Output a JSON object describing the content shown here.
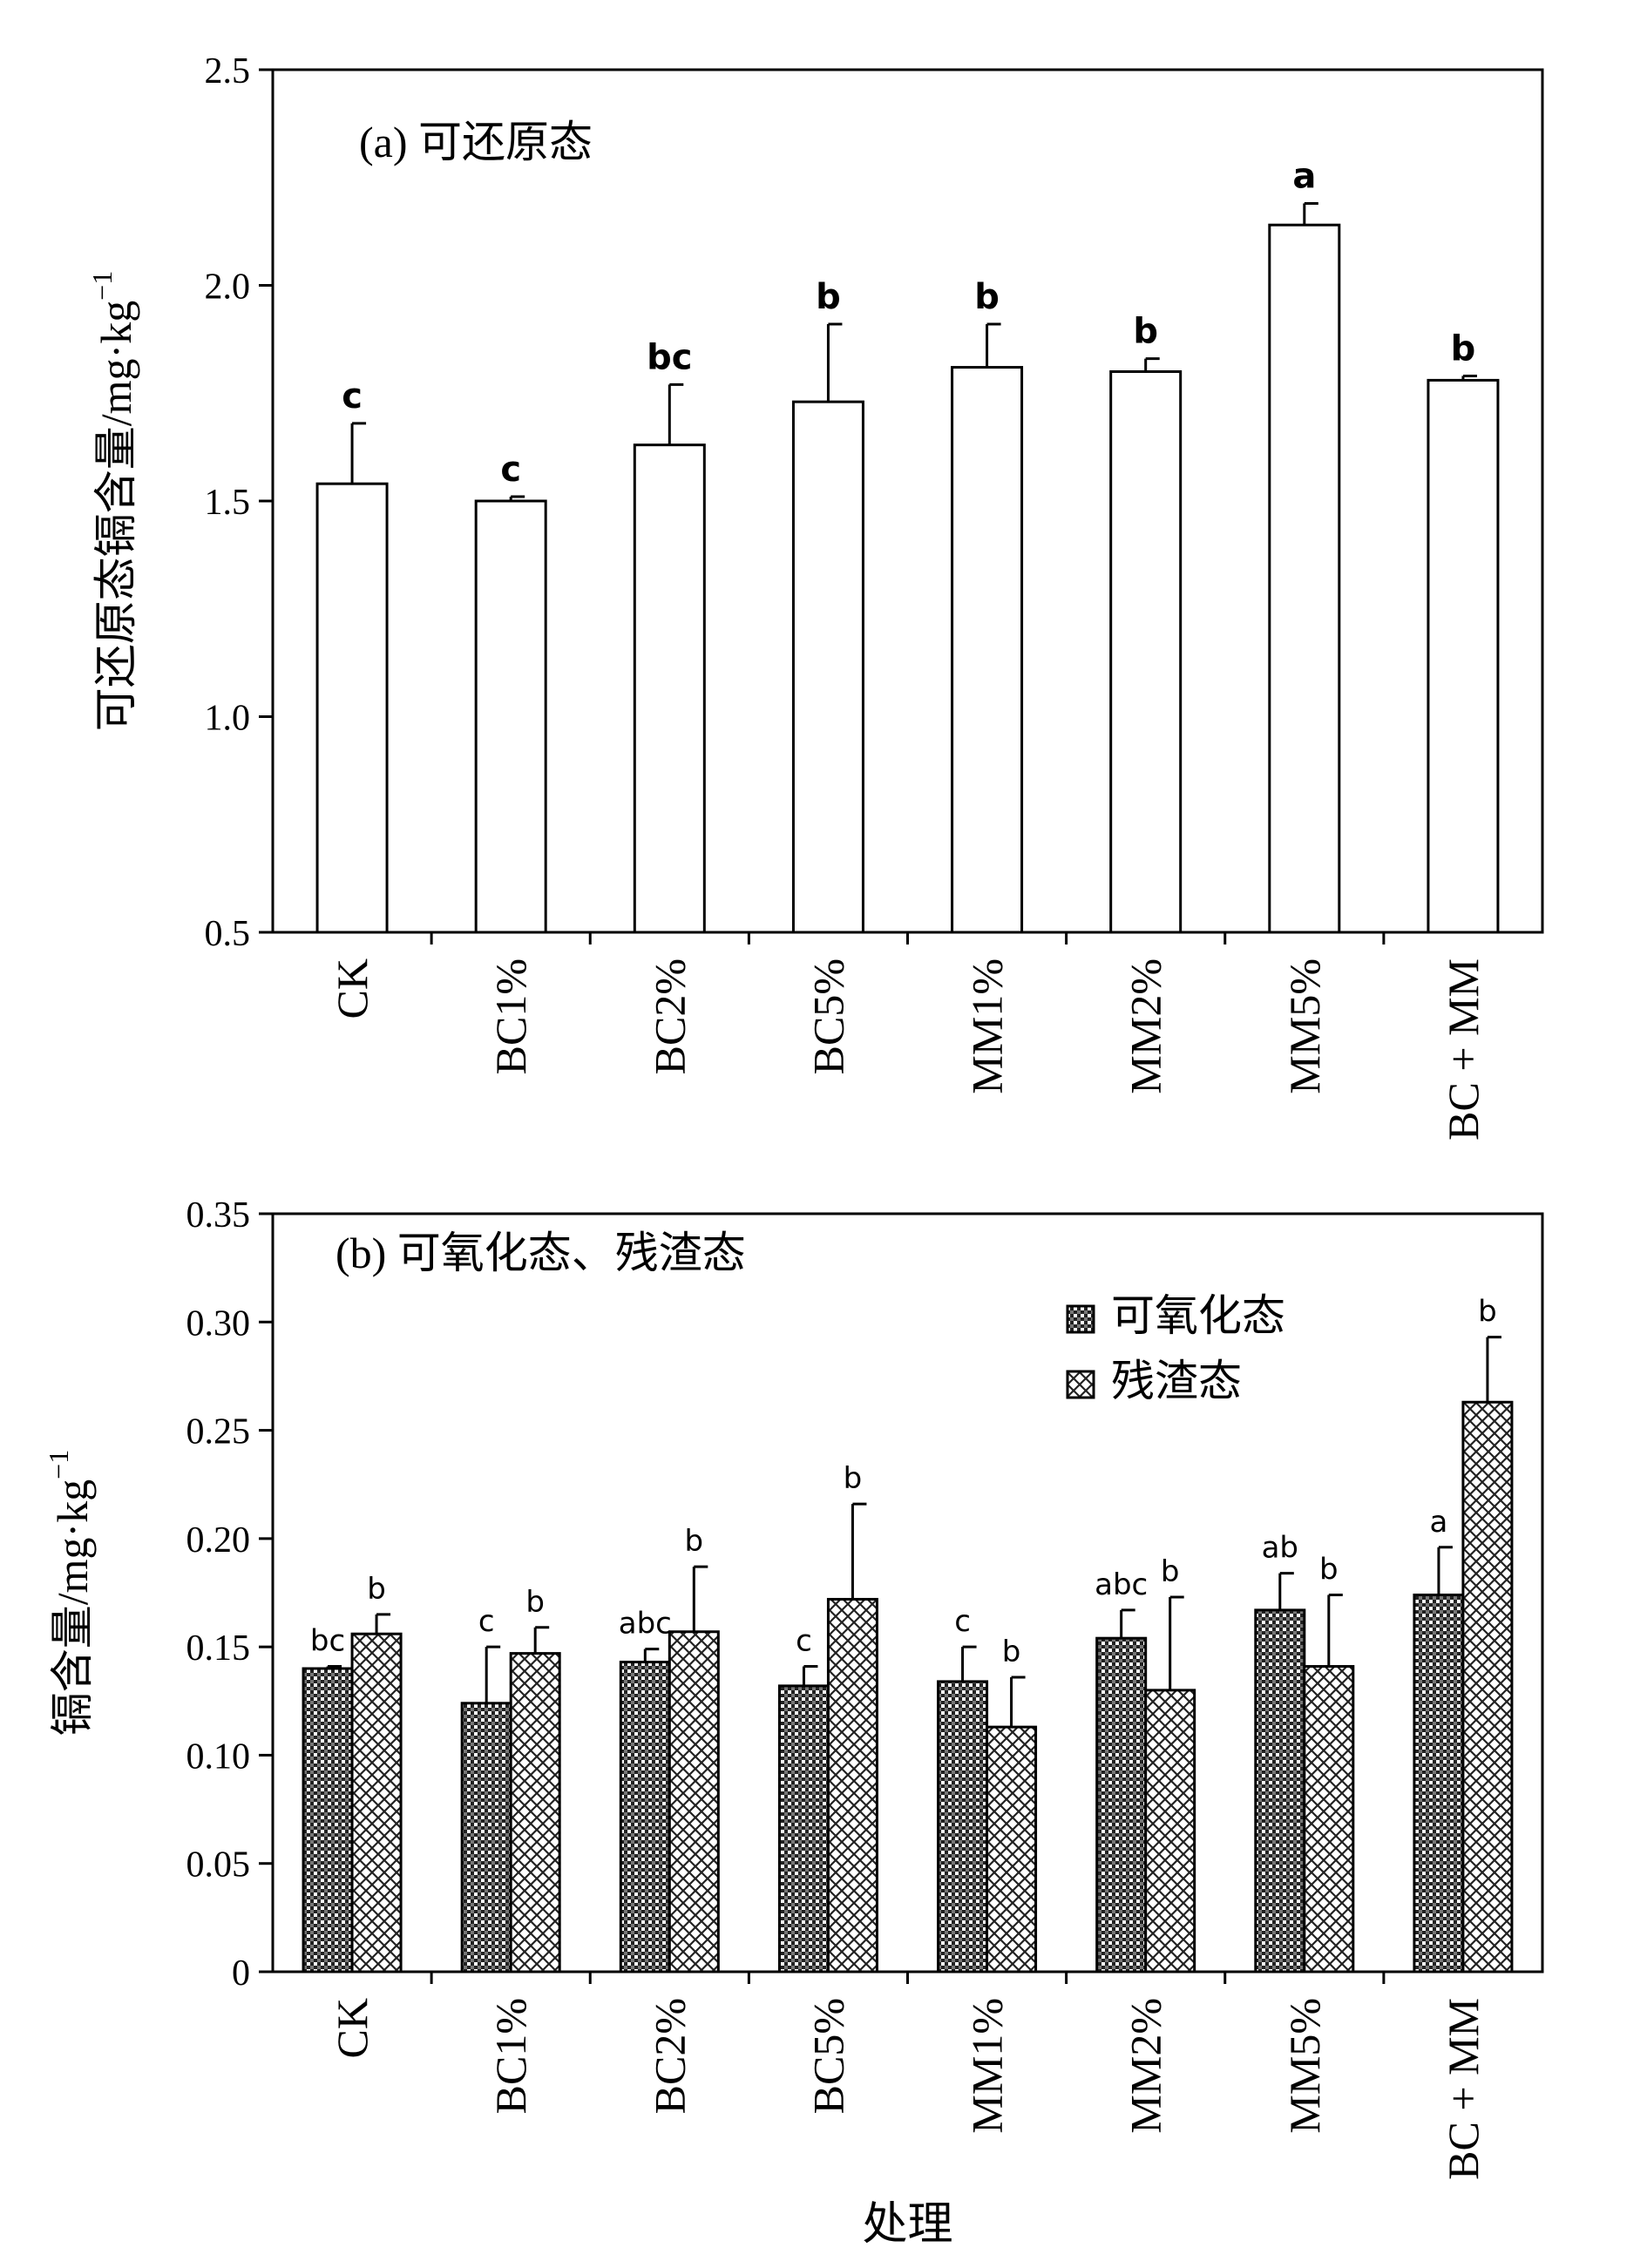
{
  "chart_data": [
    {
      "type": "bar",
      "panel_title": "(a) 可还原态",
      "ylabel": "可还原态镉含量/mg·kg",
      "ylabel_superscript": "−1",
      "xlabel": "",
      "categories": [
        "CK",
        "BC1%",
        "BC2%",
        "BC5%",
        "MM1%",
        "MM2%",
        "MM5%",
        "BC + MM"
      ],
      "ylim": [
        0.5,
        2.5
      ],
      "yticks": [
        "0.5",
        "1.0",
        "1.5",
        "2.0",
        "2.5"
      ],
      "series": [
        {
          "values": [
            1.54,
            1.5,
            1.63,
            1.73,
            1.81,
            1.8,
            2.14,
            1.78
          ],
          "errors": [
            0.14,
            0.01,
            0.14,
            0.18,
            0.1,
            0.03,
            0.05,
            0.01
          ],
          "letters": [
            "c",
            "c",
            "bc",
            "b",
            "b",
            "b",
            "a",
            "b"
          ],
          "fill": "#ffffff"
        }
      ],
      "grid": false
    },
    {
      "type": "bar",
      "panel_title": "(b) 可氧化态、残渣态",
      "ylabel": "镉含量/mg·kg",
      "ylabel_superscript": "−1",
      "xlabel": "处理",
      "categories": [
        "CK",
        "BC1%",
        "BC2%",
        "BC5%",
        "MM1%",
        "MM2%",
        "MM5%",
        "BC + MM"
      ],
      "ylim": [
        0,
        0.35
      ],
      "yticks": [
        "0",
        "0.05",
        "0.10",
        "0.15",
        "0.20",
        "0.25",
        "0.30",
        "0.35"
      ],
      "series": [
        {
          "name": "可氧化态",
          "values": [
            0.14,
            0.124,
            0.143,
            0.132,
            0.134,
            0.154,
            0.167,
            0.174
          ],
          "errors": [
            0.001,
            0.026,
            0.006,
            0.009,
            0.016,
            0.013,
            0.017,
            0.022
          ],
          "letters": [
            "bc",
            "c",
            "abc",
            "c",
            "c",
            "abc",
            "ab",
            "a"
          ],
          "pattern": "dense-dots"
        },
        {
          "name": "残渣态",
          "values": [
            0.156,
            0.147,
            0.157,
            0.172,
            0.113,
            0.13,
            0.141,
            0.263
          ],
          "errors": [
            0.009,
            0.012,
            0.03,
            0.044,
            0.023,
            0.043,
            0.033,
            0.03
          ],
          "letters": [
            "b",
            "b",
            "b",
            "b",
            "b",
            "b",
            "b",
            "b"
          ],
          "pattern": "cross-hatch"
        }
      ],
      "legend": {
        "position": "top-right"
      },
      "grid": false
    }
  ]
}
